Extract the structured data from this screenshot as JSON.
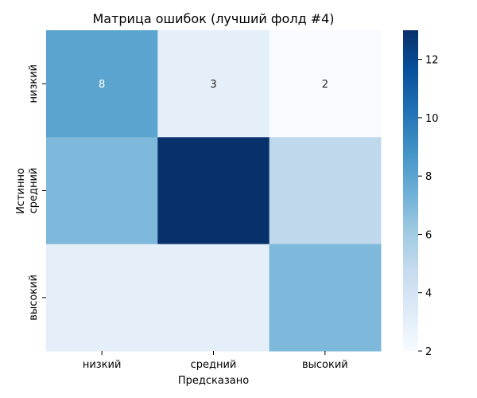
{
  "chart_data": {
    "type": "heatmap",
    "title": "Матрица ошибок (лучший фолд #4)",
    "xlabel": "Предсказано",
    "ylabel": "Истинно",
    "x_categories": [
      "низкий",
      "средний",
      "высокий"
    ],
    "y_categories": [
      "низкий",
      "средний",
      "высокий"
    ],
    "values": [
      [
        8,
        3,
        2
      ],
      [
        7,
        13,
        5
      ],
      [
        3,
        3,
        7
      ]
    ],
    "cell_labels": [
      [
        "8",
        "3",
        "2"
      ],
      [
        "",
        "",
        ""
      ],
      [
        "",
        "",
        ""
      ]
    ],
    "colorbar": {
      "min": 2,
      "max": 13,
      "ticks": [
        2,
        4,
        6,
        8,
        10,
        12
      ]
    },
    "colormap": [
      "#f7fbff",
      "#deebf7",
      "#c6dbef",
      "#9ecae1",
      "#6baed6",
      "#4292c6",
      "#2171b5",
      "#08519c",
      "#08306b"
    ],
    "label_light_color": "#ffffff",
    "label_dark_color": "#262626"
  }
}
